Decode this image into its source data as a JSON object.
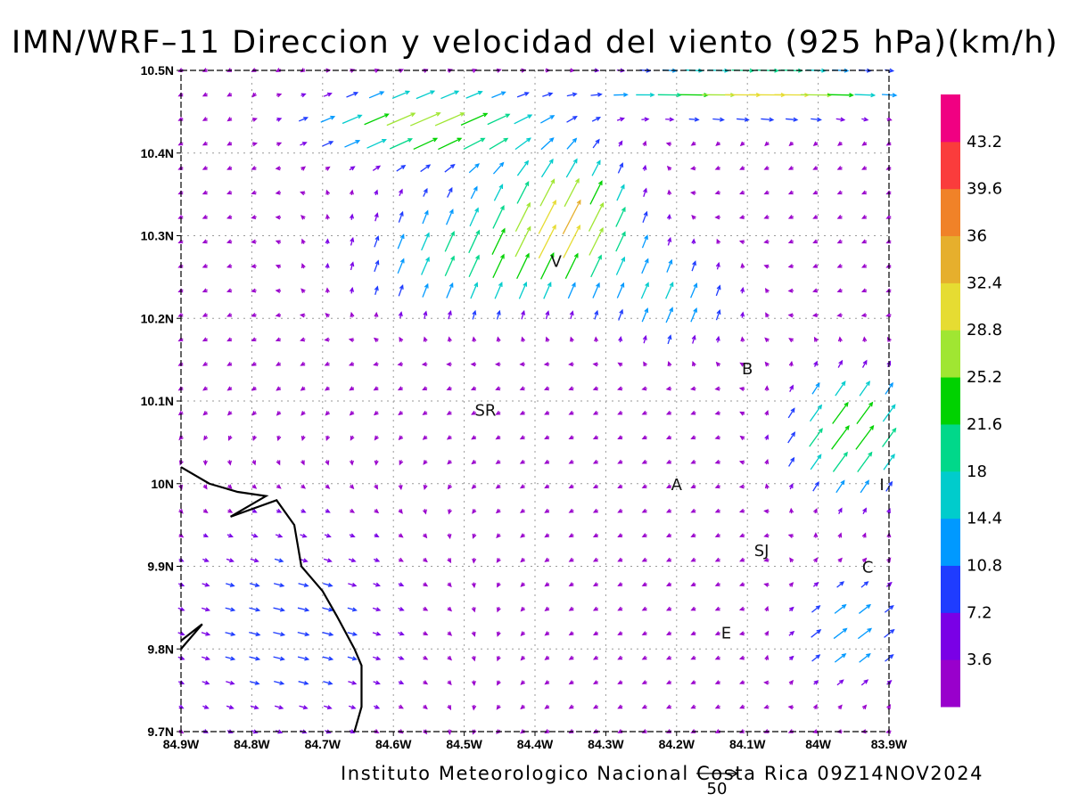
{
  "title": "IMN/WRF–11 Direccion y velocidad del viento (925 hPa)(km/h)",
  "footer": "Instituto Meteorologico Nacional Costa Rica 09Z14NOV2024",
  "reference_vector": {
    "label": "50",
    "speed_kmh": 50
  },
  "axes": {
    "lon_ticks": [
      "84.9W",
      "84.8W",
      "84.7W",
      "84.6W",
      "84.5W",
      "84.4W",
      "84.3W",
      "84.2W",
      "84.1W",
      "84W",
      "83.9W"
    ],
    "lat_ticks": [
      "10.5N",
      "10.4N",
      "10.3N",
      "10.2N",
      "10.1N",
      "10N",
      "9.9N",
      "9.8N",
      "9.7N"
    ],
    "lon_range": [
      -84.9,
      -83.9
    ],
    "lat_range": [
      9.7,
      10.5
    ],
    "grid": true
  },
  "colorbar": {
    "labels": [
      "43.2",
      "39.6",
      "36",
      "32.4",
      "28.8",
      "25.2",
      "21.6",
      "18",
      "14.4",
      "10.8",
      "7.2",
      "3.6"
    ],
    "colors": [
      "#9900cc",
      "#7a00e6",
      "#1f3cff",
      "#0099ff",
      "#00cccc",
      "#00d88a",
      "#00d200",
      "#a0e632",
      "#e6dc32",
      "#e6af2d",
      "#f08228",
      "#fa3c3c",
      "#f00082"
    ]
  },
  "cities": [
    {
      "label": "V",
      "lon": -84.37,
      "lat": 10.27
    },
    {
      "label": "B",
      "lon": -84.1,
      "lat": 10.14
    },
    {
      "label": "SR",
      "lon": -84.47,
      "lat": 10.09
    },
    {
      "label": "A",
      "lon": -84.2,
      "lat": 10.0
    },
    {
      "label": "I",
      "lon": -83.91,
      "lat": 10.0
    },
    {
      "label": "SJ",
      "lon": -84.08,
      "lat": 9.92
    },
    {
      "label": "C",
      "lon": -83.93,
      "lat": 9.9
    },
    {
      "label": "E",
      "lon": -84.13,
      "lat": 9.82
    }
  ],
  "coastline": [
    [
      -84.9,
      10.02
    ],
    [
      -84.86,
      10.0
    ],
    [
      -84.82,
      9.99
    ],
    [
      -84.78,
      9.985
    ],
    [
      -84.83,
      9.96
    ],
    [
      -84.765,
      9.98
    ],
    [
      -84.74,
      9.95
    ],
    [
      -84.73,
      9.9
    ],
    [
      -84.7,
      9.87
    ],
    [
      -84.68,
      9.84
    ],
    [
      -84.655,
      9.8
    ],
    [
      -84.645,
      9.78
    ],
    [
      -84.645,
      9.73
    ],
    [
      -84.655,
      9.7
    ]
  ],
  "coastline_spur": [
    [
      -84.9,
      9.81
    ],
    [
      -84.87,
      9.83
    ],
    [
      -84.9,
      9.8
    ]
  ]
}
